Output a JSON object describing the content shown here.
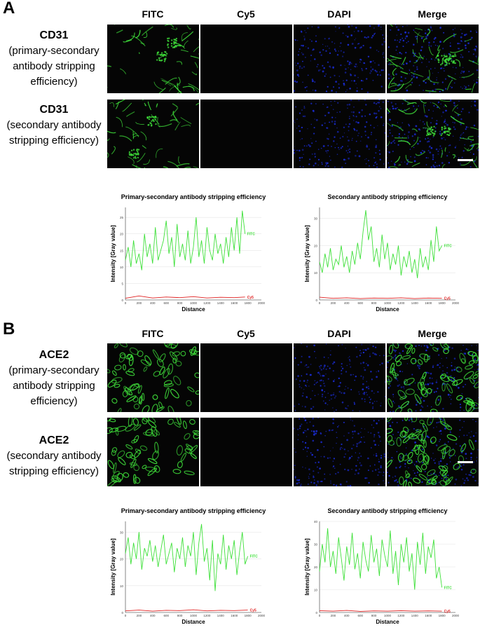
{
  "panels": [
    {
      "letter": "A",
      "columns": [
        "FITC",
        "Cy5",
        "DAPI",
        "Merge"
      ],
      "rows": [
        {
          "marker": "CD31",
          "line2": "(primary-secondary",
          "line3": "antibody stripping",
          "line4": "efficiency)"
        },
        {
          "marker": "CD31",
          "line2": "(secondary antibody",
          "line3": "stripping efficiency)",
          "line4": ""
        }
      ]
    },
    {
      "letter": "B",
      "columns": [
        "FITC",
        "Cy5",
        "DAPI",
        "Merge"
      ],
      "rows": [
        {
          "marker": "ACE2",
          "line2": "(primary-secondary",
          "line3": "antibody stripping",
          "line4": "efficiency)"
        },
        {
          "marker": "ACE2",
          "line2": "(secondary antibody",
          "line3": "stripping efficiency)",
          "line4": ""
        }
      ]
    }
  ],
  "colors": {
    "fitc": "#3fe03a",
    "cy5": "#e02020",
    "dapi": "#1a2bd0"
  },
  "chart_data": [
    {
      "type": "line",
      "title": "Primary-secondary antibody stripping efficiency",
      "xlabel": "Distance",
      "ylabel": "Intensity [Gray value]",
      "xlim": [
        0,
        2000
      ],
      "ylim": [
        0,
        28
      ],
      "xticks": [
        0,
        200,
        400,
        600,
        800,
        1000,
        1200,
        1400,
        1600,
        1800,
        2000
      ],
      "yticks": [
        0,
        5,
        10,
        15,
        20,
        25
      ],
      "series": [
        {
          "name": "FITC",
          "x": [
            0,
            40,
            80,
            120,
            160,
            200,
            240,
            280,
            320,
            360,
            400,
            440,
            480,
            520,
            560,
            600,
            640,
            680,
            720,
            760,
            800,
            840,
            880,
            920,
            960,
            1000,
            1040,
            1080,
            1120,
            1160,
            1200,
            1240,
            1280,
            1320,
            1360,
            1400,
            1440,
            1480,
            1520,
            1560,
            1600,
            1640,
            1680,
            1720,
            1760
          ],
          "y": [
            12,
            16,
            10,
            18,
            11,
            14,
            9,
            20,
            13,
            17,
            11,
            22,
            12,
            15,
            18,
            24,
            14,
            19,
            10,
            23,
            13,
            17,
            12,
            21,
            11,
            16,
            25,
            13,
            18,
            11,
            22,
            15,
            12,
            20,
            14,
            17,
            11,
            19,
            13,
            22,
            15,
            25,
            14,
            27,
            20
          ]
        },
        {
          "name": "Cy5",
          "x": [
            0,
            200,
            400,
            600,
            800,
            1000,
            1200,
            1400,
            1600,
            1760
          ],
          "y": [
            0.5,
            1.2,
            0.6,
            0.9,
            0.7,
            1.0,
            0.6,
            0.8,
            0.7,
            0.9
          ]
        }
      ]
    },
    {
      "type": "line",
      "title": "Secondary antibody stripping efficiency",
      "xlabel": "Distance",
      "ylabel": "Intensity [Gray value]",
      "xlim": [
        0,
        2000
      ],
      "ylim": [
        0,
        34
      ],
      "xticks": [
        0,
        200,
        400,
        600,
        800,
        1000,
        1200,
        1400,
        1600,
        1800,
        2000
      ],
      "yticks": [
        0,
        10,
        20,
        30
      ],
      "series": [
        {
          "name": "FITC",
          "x": [
            0,
            40,
            80,
            120,
            160,
            200,
            240,
            280,
            320,
            360,
            400,
            440,
            480,
            520,
            560,
            600,
            640,
            680,
            720,
            760,
            800,
            840,
            880,
            920,
            960,
            1000,
            1040,
            1080,
            1120,
            1160,
            1200,
            1240,
            1280,
            1320,
            1360,
            1400,
            1440,
            1480,
            1520,
            1560,
            1600,
            1640,
            1680,
            1720,
            1760,
            1800
          ],
          "y": [
            14,
            10,
            17,
            12,
            19,
            11,
            15,
            13,
            20,
            12,
            16,
            10,
            18,
            13,
            21,
            15,
            25,
            33,
            22,
            27,
            14,
            19,
            12,
            24,
            15,
            21,
            11,
            17,
            13,
            20,
            9,
            16,
            12,
            18,
            10,
            15,
            8,
            19,
            12,
            16,
            11,
            22,
            14,
            27,
            18,
            20
          ]
        },
        {
          "name": "Cy5",
          "x": [
            0,
            200,
            400,
            600,
            800,
            1000,
            1200,
            1400,
            1600,
            1800
          ],
          "y": [
            1,
            0.6,
            0.8,
            0.5,
            0.7,
            0.6,
            0.8,
            0.5,
            0.7,
            0.6
          ]
        }
      ]
    },
    {
      "type": "line",
      "title": "Primary-secondary antibody stripping efficiency",
      "xlabel": "Distance",
      "ylabel": "Intensity [Gray value]",
      "xlim": [
        0,
        2000
      ],
      "ylim": [
        0,
        34
      ],
      "xticks": [
        0,
        200,
        400,
        600,
        800,
        1000,
        1200,
        1400,
        1600,
        1800,
        2000
      ],
      "yticks": [
        0,
        10,
        20,
        30
      ],
      "series": [
        {
          "name": "FITC",
          "x": [
            0,
            40,
            80,
            120,
            160,
            200,
            240,
            280,
            320,
            360,
            400,
            440,
            480,
            520,
            560,
            600,
            640,
            680,
            720,
            760,
            800,
            840,
            880,
            920,
            960,
            1000,
            1040,
            1080,
            1120,
            1160,
            1200,
            1240,
            1280,
            1320,
            1360,
            1400,
            1440,
            1480,
            1520,
            1560,
            1600,
            1640,
            1680,
            1720,
            1760,
            1800
          ],
          "y": [
            22,
            28,
            18,
            26,
            20,
            30,
            16,
            24,
            21,
            27,
            19,
            25,
            17,
            23,
            29,
            18,
            22,
            26,
            15,
            24,
            20,
            28,
            17,
            25,
            21,
            30,
            14,
            26,
            33,
            19,
            24,
            12,
            27,
            8,
            22,
            18,
            29,
            16,
            25,
            20,
            27,
            14,
            23,
            30,
            18,
            21
          ]
        },
        {
          "name": "Cy5",
          "x": [
            0,
            200,
            400,
            600,
            800,
            1000,
            1200,
            1400,
            1600,
            1800
          ],
          "y": [
            0.6,
            0.9,
            0.5,
            0.8,
            0.7,
            1.0,
            0.6,
            0.8,
            0.7,
            0.9
          ]
        }
      ]
    },
    {
      "type": "line",
      "title": "Secondary antibody stripping efficiency",
      "xlabel": "Distance",
      "ylabel": "Intensity [Gray value]",
      "xlim": [
        0,
        2000
      ],
      "ylim": [
        0,
        40
      ],
      "xticks": [
        0,
        200,
        400,
        600,
        800,
        1000,
        1200,
        1400,
        1600,
        1800,
        2000
      ],
      "yticks": [
        0,
        10,
        20,
        30,
        40
      ],
      "series": [
        {
          "name": "FITC",
          "x": [
            0,
            40,
            80,
            120,
            160,
            200,
            240,
            280,
            320,
            360,
            400,
            440,
            480,
            520,
            560,
            600,
            640,
            680,
            720,
            760,
            800,
            840,
            880,
            920,
            960,
            1000,
            1040,
            1080,
            1120,
            1160,
            1200,
            1240,
            1280,
            1320,
            1360,
            1400,
            1440,
            1480,
            1520,
            1560,
            1600,
            1640,
            1680,
            1720,
            1760,
            1800
          ],
          "y": [
            18,
            30,
            22,
            37,
            20,
            27,
            17,
            33,
            24,
            14,
            29,
            21,
            35,
            19,
            26,
            15,
            31,
            23,
            18,
            34,
            22,
            28,
            16,
            32,
            25,
            20,
            36,
            17,
            27,
            12,
            30,
            22,
            33,
            18,
            26,
            10,
            31,
            21,
            35,
            17,
            29,
            24,
            32,
            15,
            20,
            11
          ]
        },
        {
          "name": "Cy5",
          "x": [
            0,
            200,
            400,
            600,
            800,
            1000,
            1200,
            1400,
            1600,
            1800
          ],
          "y": [
            0.8,
            0.6,
            0.9,
            0.5,
            0.7,
            0.6,
            0.8,
            0.6,
            0.7,
            0.6
          ]
        }
      ]
    }
  ]
}
